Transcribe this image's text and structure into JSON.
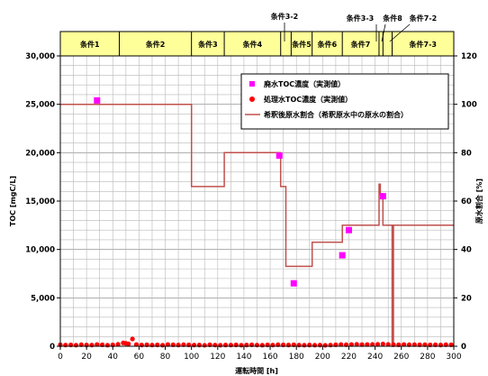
{
  "chart_data": {
    "type": "line",
    "xlabel": "運転時間 [h]",
    "ylabel_left": "TOC [mgC/L]",
    "ylabel_right": "原水割合 [%]",
    "xlim": [
      0,
      300
    ],
    "ylim_left": [
      0,
      30000
    ],
    "ylim_right": [
      0,
      120
    ],
    "x_ticks": [
      0,
      20,
      40,
      60,
      80,
      100,
      120,
      140,
      160,
      180,
      200,
      220,
      240,
      260,
      280,
      300
    ],
    "y_left_ticks": [
      "0",
      "5,000",
      "10,000",
      "15,000",
      "20,000",
      "25,000",
      "30,000"
    ],
    "y_left_tick_values": [
      0,
      5000,
      10000,
      15000,
      20000,
      25000,
      30000
    ],
    "y_right_ticks": [
      "0",
      "20",
      "40",
      "60",
      "80",
      "100",
      "120"
    ],
    "y_right_tick_values": [
      0,
      20,
      40,
      60,
      80,
      100,
      120
    ],
    "grid": "horizontal minor gridlines every 1,000 mgC/L, vertical gridlines every 10 h",
    "legend_position": "top-right",
    "conditions": [
      {
        "label": "条件1",
        "start": 0,
        "end": 45
      },
      {
        "label": "条件2",
        "start": 45,
        "end": 100
      },
      {
        "label": "条件3",
        "start": 100,
        "end": 125
      },
      {
        "label": "条件4",
        "start": 125,
        "end": 168
      },
      {
        "label": "",
        "start": 168,
        "end": 176
      },
      {
        "label": "条件5",
        "start": 176,
        "end": 192
      },
      {
        "label": "条件6",
        "start": 192,
        "end": 215
      },
      {
        "label": "条件7",
        "start": 215,
        "end": 243
      },
      {
        "label": "",
        "start": 243,
        "end": 246
      },
      {
        "label": "",
        "start": 246,
        "end": 253
      },
      {
        "label": "条件7-3",
        "start": 253,
        "end": 300
      }
    ],
    "condition_callouts": [
      {
        "label": "条件3-2",
        "x": 172
      },
      {
        "label": "条件3-3",
        "x": 244
      },
      {
        "label": "条件8",
        "x": 247
      },
      {
        "label": "条件7-2",
        "x": 252
      }
    ],
    "series": [
      {
        "name": "廃水TOC濃度（実測値）",
        "axis": "left",
        "marker": "square",
        "color": "#ff00ff",
        "points": [
          [
            28,
            25400
          ],
          [
            167,
            19700
          ],
          [
            178,
            6500
          ],
          [
            215,
            9400
          ],
          [
            220,
            12000
          ],
          [
            246,
            15500
          ]
        ]
      },
      {
        "name": "処理水TOC濃度（実測値）",
        "axis": "left",
        "marker": "circle",
        "color": "#ff0000",
        "points": [
          [
            0,
            150
          ],
          [
            4,
            120
          ],
          [
            8,
            140
          ],
          [
            12,
            110
          ],
          [
            16,
            160
          ],
          [
            20,
            130
          ],
          [
            24,
            120
          ],
          [
            28,
            180
          ],
          [
            32,
            150
          ],
          [
            36,
            110
          ],
          [
            40,
            140
          ],
          [
            44,
            200
          ],
          [
            48,
            350
          ],
          [
            50,
            300
          ],
          [
            52,
            250
          ],
          [
            55,
            750
          ],
          [
            58,
            180
          ],
          [
            62,
            130
          ],
          [
            66,
            150
          ],
          [
            70,
            120
          ],
          [
            74,
            140
          ],
          [
            78,
            110
          ],
          [
            82,
            180
          ],
          [
            86,
            150
          ],
          [
            90,
            130
          ],
          [
            94,
            160
          ],
          [
            98,
            140
          ],
          [
            102,
            120
          ],
          [
            106,
            130
          ],
          [
            110,
            100
          ],
          [
            114,
            150
          ],
          [
            118,
            120
          ],
          [
            122,
            110
          ],
          [
            126,
            130
          ],
          [
            130,
            120
          ],
          [
            134,
            140
          ],
          [
            138,
            110
          ],
          [
            142,
            130
          ],
          [
            146,
            150
          ],
          [
            150,
            120
          ],
          [
            154,
            110
          ],
          [
            158,
            140
          ],
          [
            162,
            120
          ],
          [
            166,
            160
          ],
          [
            170,
            140
          ],
          [
            174,
            130
          ],
          [
            178,
            150
          ],
          [
            182,
            120
          ],
          [
            186,
            110
          ],
          [
            190,
            130
          ],
          [
            194,
            110
          ],
          [
            198,
            120
          ],
          [
            202,
            100
          ],
          [
            206,
            120
          ],
          [
            210,
            150
          ],
          [
            214,
            180
          ],
          [
            218,
            160
          ],
          [
            222,
            180
          ],
          [
            226,
            200
          ],
          [
            230,
            170
          ],
          [
            234,
            180
          ],
          [
            238,
            190
          ],
          [
            242,
            200
          ],
          [
            246,
            230
          ],
          [
            250,
            190
          ],
          [
            254,
            170
          ],
          [
            258,
            150
          ],
          [
            262,
            180
          ],
          [
            266,
            160
          ],
          [
            270,
            170
          ],
          [
            274,
            150
          ],
          [
            278,
            160
          ],
          [
            282,
            140
          ],
          [
            286,
            150
          ],
          [
            290,
            130
          ],
          [
            294,
            160
          ],
          [
            298,
            150
          ]
        ]
      },
      {
        "name": "希釈後原水割合（希釈原水中の原水の割合）",
        "axis": "right",
        "marker": "none",
        "color": "#c0504d",
        "points": [
          [
            0,
            100
          ],
          [
            100,
            100
          ],
          [
            100,
            66
          ],
          [
            125,
            66
          ],
          [
            125,
            80
          ],
          [
            168,
            80
          ],
          [
            168,
            66
          ],
          [
            172,
            66
          ],
          [
            172,
            33
          ],
          [
            192,
            33
          ],
          [
            192,
            43
          ],
          [
            215,
            43
          ],
          [
            215,
            50
          ],
          [
            243,
            50
          ],
          [
            243,
            67
          ],
          [
            244,
            67
          ],
          [
            244,
            63
          ],
          [
            246,
            63
          ],
          [
            246,
            50
          ],
          [
            253,
            50
          ],
          [
            253,
            0
          ],
          [
            254,
            0
          ],
          [
            254,
            50
          ],
          [
            300,
            50
          ]
        ]
      }
    ]
  }
}
